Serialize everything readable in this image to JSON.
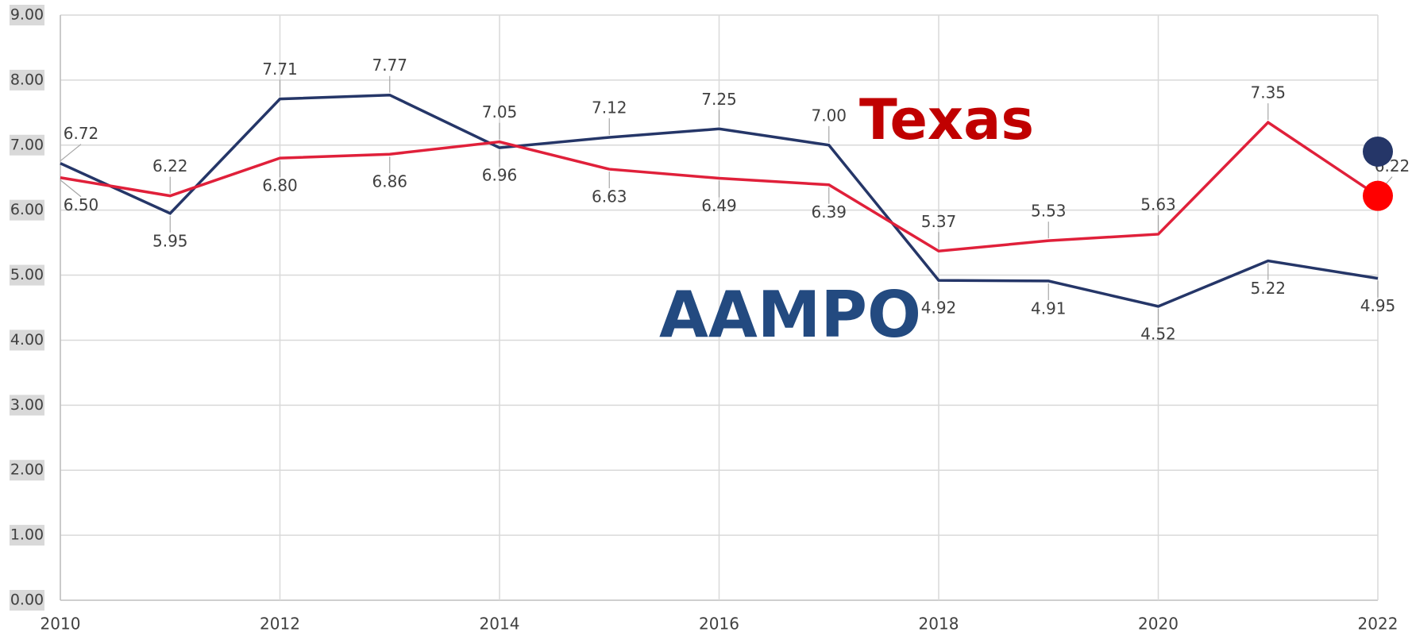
{
  "chart_data": {
    "type": "line",
    "x": [
      2010,
      2011,
      2012,
      2013,
      2014,
      2015,
      2016,
      2017,
      2018,
      2019,
      2020,
      2021,
      2022
    ],
    "xlim": [
      2010,
      2022
    ],
    "xticks": [
      2010,
      2012,
      2014,
      2016,
      2018,
      2020,
      2022
    ],
    "ylim": [
      0,
      9
    ],
    "yticks": [
      {
        "value": 0,
        "label": "0.00"
      },
      {
        "value": 1,
        "label": "1.00"
      },
      {
        "value": 2,
        "label": "2.00"
      },
      {
        "value": 3,
        "label": "3.00"
      },
      {
        "value": 4,
        "label": "4.00"
      },
      {
        "value": 5,
        "label": "5.00"
      },
      {
        "value": 6,
        "label": "6.00"
      },
      {
        "value": 7,
        "label": "7.00"
      },
      {
        "value": 8,
        "label": "8.00"
      },
      {
        "value": 9,
        "label": "9.00"
      }
    ],
    "grid": true,
    "series": [
      {
        "name": "AAMPO",
        "color": "#253668",
        "values": [
          6.72,
          5.95,
          7.71,
          7.77,
          6.96,
          7.12,
          7.25,
          7.0,
          4.92,
          4.91,
          4.52,
          5.22,
          4.95
        ],
        "value_labels": [
          "6.72",
          "5.95",
          "7.71",
          "7.77",
          "6.96",
          "7.12",
          "7.25",
          "7.00",
          "4.92",
          "4.91",
          "4.52",
          "5.22",
          "4.95"
        ]
      },
      {
        "name": "Texas",
        "color": "#e0203a",
        "values": [
          6.5,
          6.22,
          6.8,
          6.86,
          7.05,
          6.63,
          6.49,
          6.39,
          5.37,
          5.53,
          5.63,
          7.35,
          6.22
        ],
        "value_labels": [
          "6.50",
          "6.22",
          "6.80",
          "6.86",
          "7.05",
          "6.63",
          "6.49",
          "6.39",
          "5.37",
          "5.53",
          "5.63",
          "7.35",
          "6.22"
        ]
      }
    ]
  }
}
